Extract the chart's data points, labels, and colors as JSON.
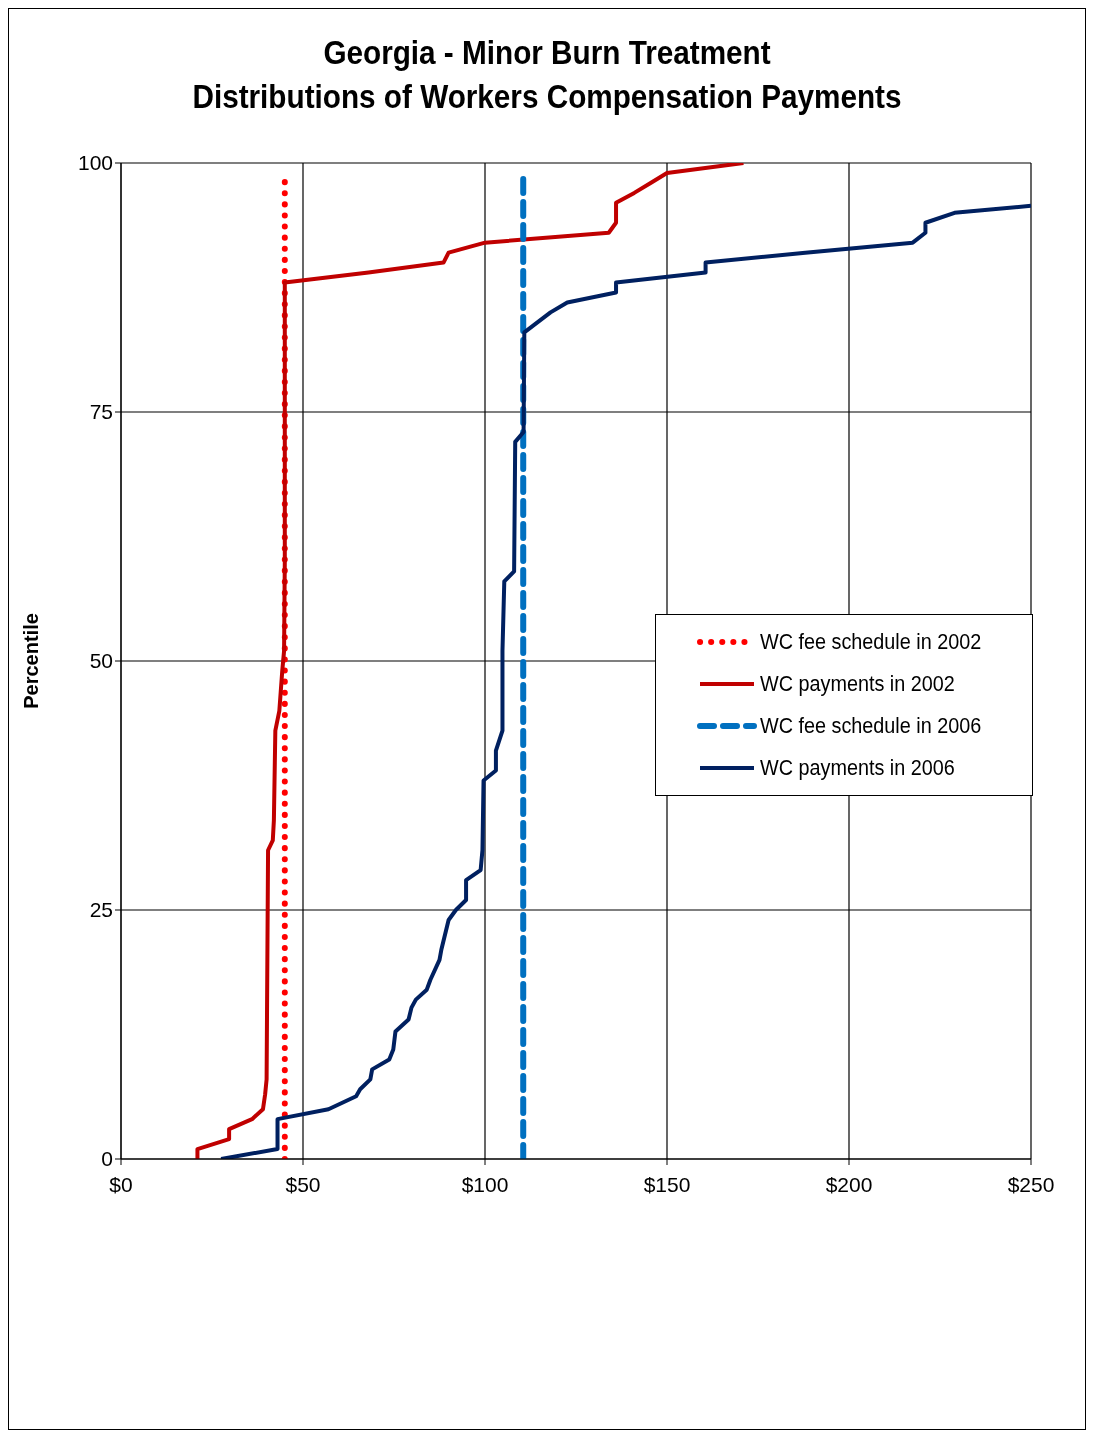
{
  "chart_data": {
    "type": "line",
    "title": "Georgia -  Minor Burn Treatment",
    "subtitle": "Distributions of Workers Compensation Payments",
    "ylabel": "Percentile",
    "xlim": [
      0,
      250
    ],
    "xticks": [
      {
        "value": 0,
        "label": "$0"
      },
      {
        "value": 50,
        "label": "$50"
      },
      {
        "value": 100,
        "label": "$100"
      },
      {
        "value": 150,
        "label": "$150"
      },
      {
        "value": 200,
        "label": "$200"
      },
      {
        "value": 250,
        "label": "$250"
      }
    ],
    "ylim": [
      0,
      100
    ],
    "yticks": [
      0,
      25,
      50,
      75,
      100
    ],
    "grid": true,
    "legend": "right",
    "marker": "none",
    "series": [
      {
        "name": "WC fee schedule in 2002",
        "color": "#ff0000",
        "line_style": "dotted",
        "x": [
          45,
          45
        ],
        "values": [
          0,
          99
        ]
      },
      {
        "name": "WC payments in 2002",
        "color": "#c00000",
        "line_style": "solid",
        "x": [
          21,
          21,
          29.7,
          29.7,
          36,
          39,
          39.6,
          40,
          40.4,
          41.7,
          42,
          42.4,
          43.5,
          44.3,
          44.8,
          45,
          45,
          68,
          88.6,
          90,
          100,
          134,
          136,
          136,
          141,
          145.5,
          150,
          171
        ],
        "values": [
          0,
          1,
          2,
          3,
          4,
          5,
          6.5,
          8,
          31,
          32,
          34,
          43,
          45,
          49,
          51,
          60,
          88,
          89,
          90,
          91,
          92,
          93,
          94,
          96,
          97,
          98,
          99,
          100
        ]
      },
      {
        "name": "WC fee schedule in 2006",
        "color": "#0070c0",
        "line_style": "dashed",
        "x": [
          110.5,
          110.5
        ],
        "values": [
          0,
          99
        ]
      },
      {
        "name": "WC payments in 2006",
        "color": "#002060",
        "line_style": "solid",
        "x": [
          27.5,
          43,
          43,
          57,
          64.6,
          65.7,
          68.5,
          69,
          73.7,
          74.8,
          75.4,
          79,
          79.8,
          81,
          84,
          85,
          87.5,
          88,
          90,
          92,
          94.8,
          94.8,
          98.8,
          99.3,
          99.6,
          103,
          103,
          104.8,
          104.8,
          105.3,
          108,
          108.3,
          110.6,
          110.8,
          118,
          122.6,
          136,
          136,
          160.6,
          160.6,
          188,
          217.5,
          221,
          221,
          229,
          250
        ],
        "values": [
          0,
          1,
          4,
          5,
          6.3,
          7,
          8,
          9,
          10,
          11,
          12.8,
          14,
          15.2,
          16,
          17,
          18,
          20,
          21,
          24,
          25,
          26,
          28,
          29,
          31,
          38,
          39,
          41,
          43,
          51,
          58,
          59,
          72,
          73,
          83,
          85,
          86,
          87,
          88,
          89,
          90,
          91,
          92,
          93,
          94,
          95,
          95.7
        ]
      }
    ]
  }
}
